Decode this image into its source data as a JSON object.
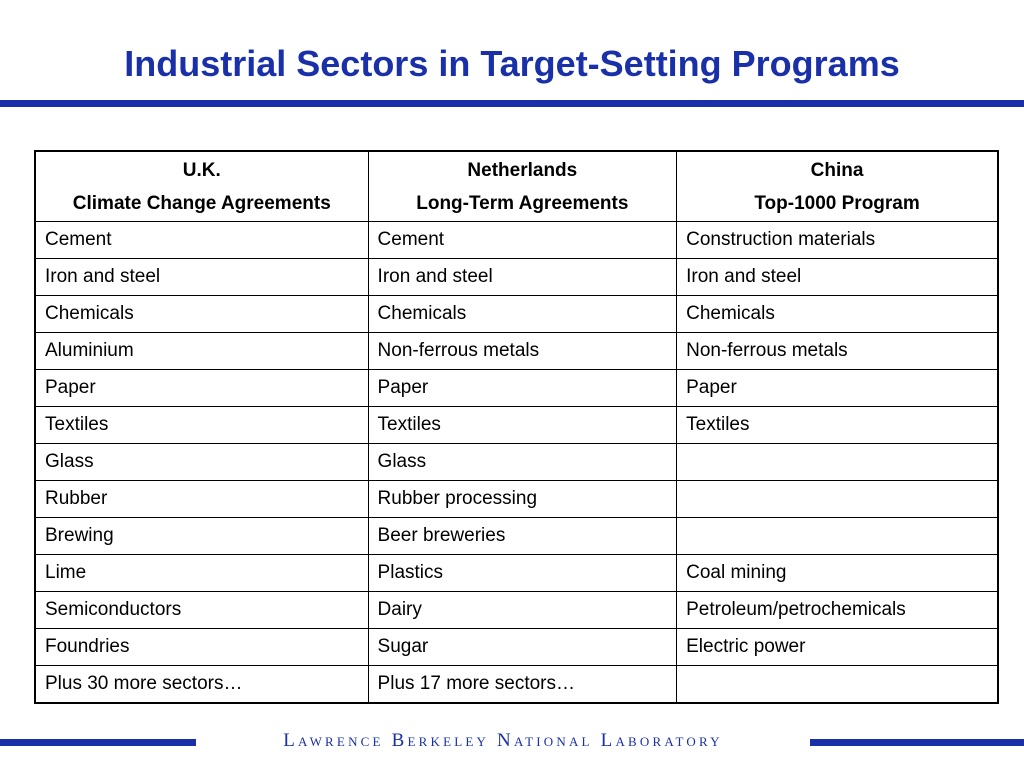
{
  "title": "Industrial Sectors in Target-Setting Programs",
  "table": {
    "headers": [
      {
        "line1": "U.K.",
        "line2": "Climate Change Agreements"
      },
      {
        "line1": "Netherlands",
        "line2": "Long-Term Agreements"
      },
      {
        "line1": "China",
        "line2": "Top-1000 Program"
      }
    ],
    "rows": [
      [
        "Cement",
        "Cement",
        "Construction materials"
      ],
      [
        "Iron and steel",
        "Iron and steel",
        "Iron and steel"
      ],
      [
        "Chemicals",
        "Chemicals",
        "Chemicals"
      ],
      [
        "Aluminium",
        "Non-ferrous metals",
        "Non-ferrous metals"
      ],
      [
        "Paper",
        "Paper",
        "Paper"
      ],
      [
        "Textiles",
        "Textiles",
        "Textiles"
      ],
      [
        "Glass",
        "Glass",
        ""
      ],
      [
        "Rubber",
        "Rubber processing",
        ""
      ],
      [
        "Brewing",
        "Beer breweries",
        ""
      ],
      [
        "Lime",
        "Plastics",
        "Coal mining"
      ],
      [
        "Semiconductors",
        "Dairy",
        "Petroleum/petrochemicals"
      ],
      [
        "Foundries",
        "Sugar",
        "Electric power"
      ],
      [
        "Plus 30 more sectors…",
        "Plus 17 more sectors…",
        ""
      ]
    ]
  },
  "footer": {
    "organization": "Lawrence Berkeley National Laboratory"
  },
  "colors": {
    "brand_blue": "#1a30a8",
    "table_border": "#000000",
    "background": "#ffffff"
  }
}
